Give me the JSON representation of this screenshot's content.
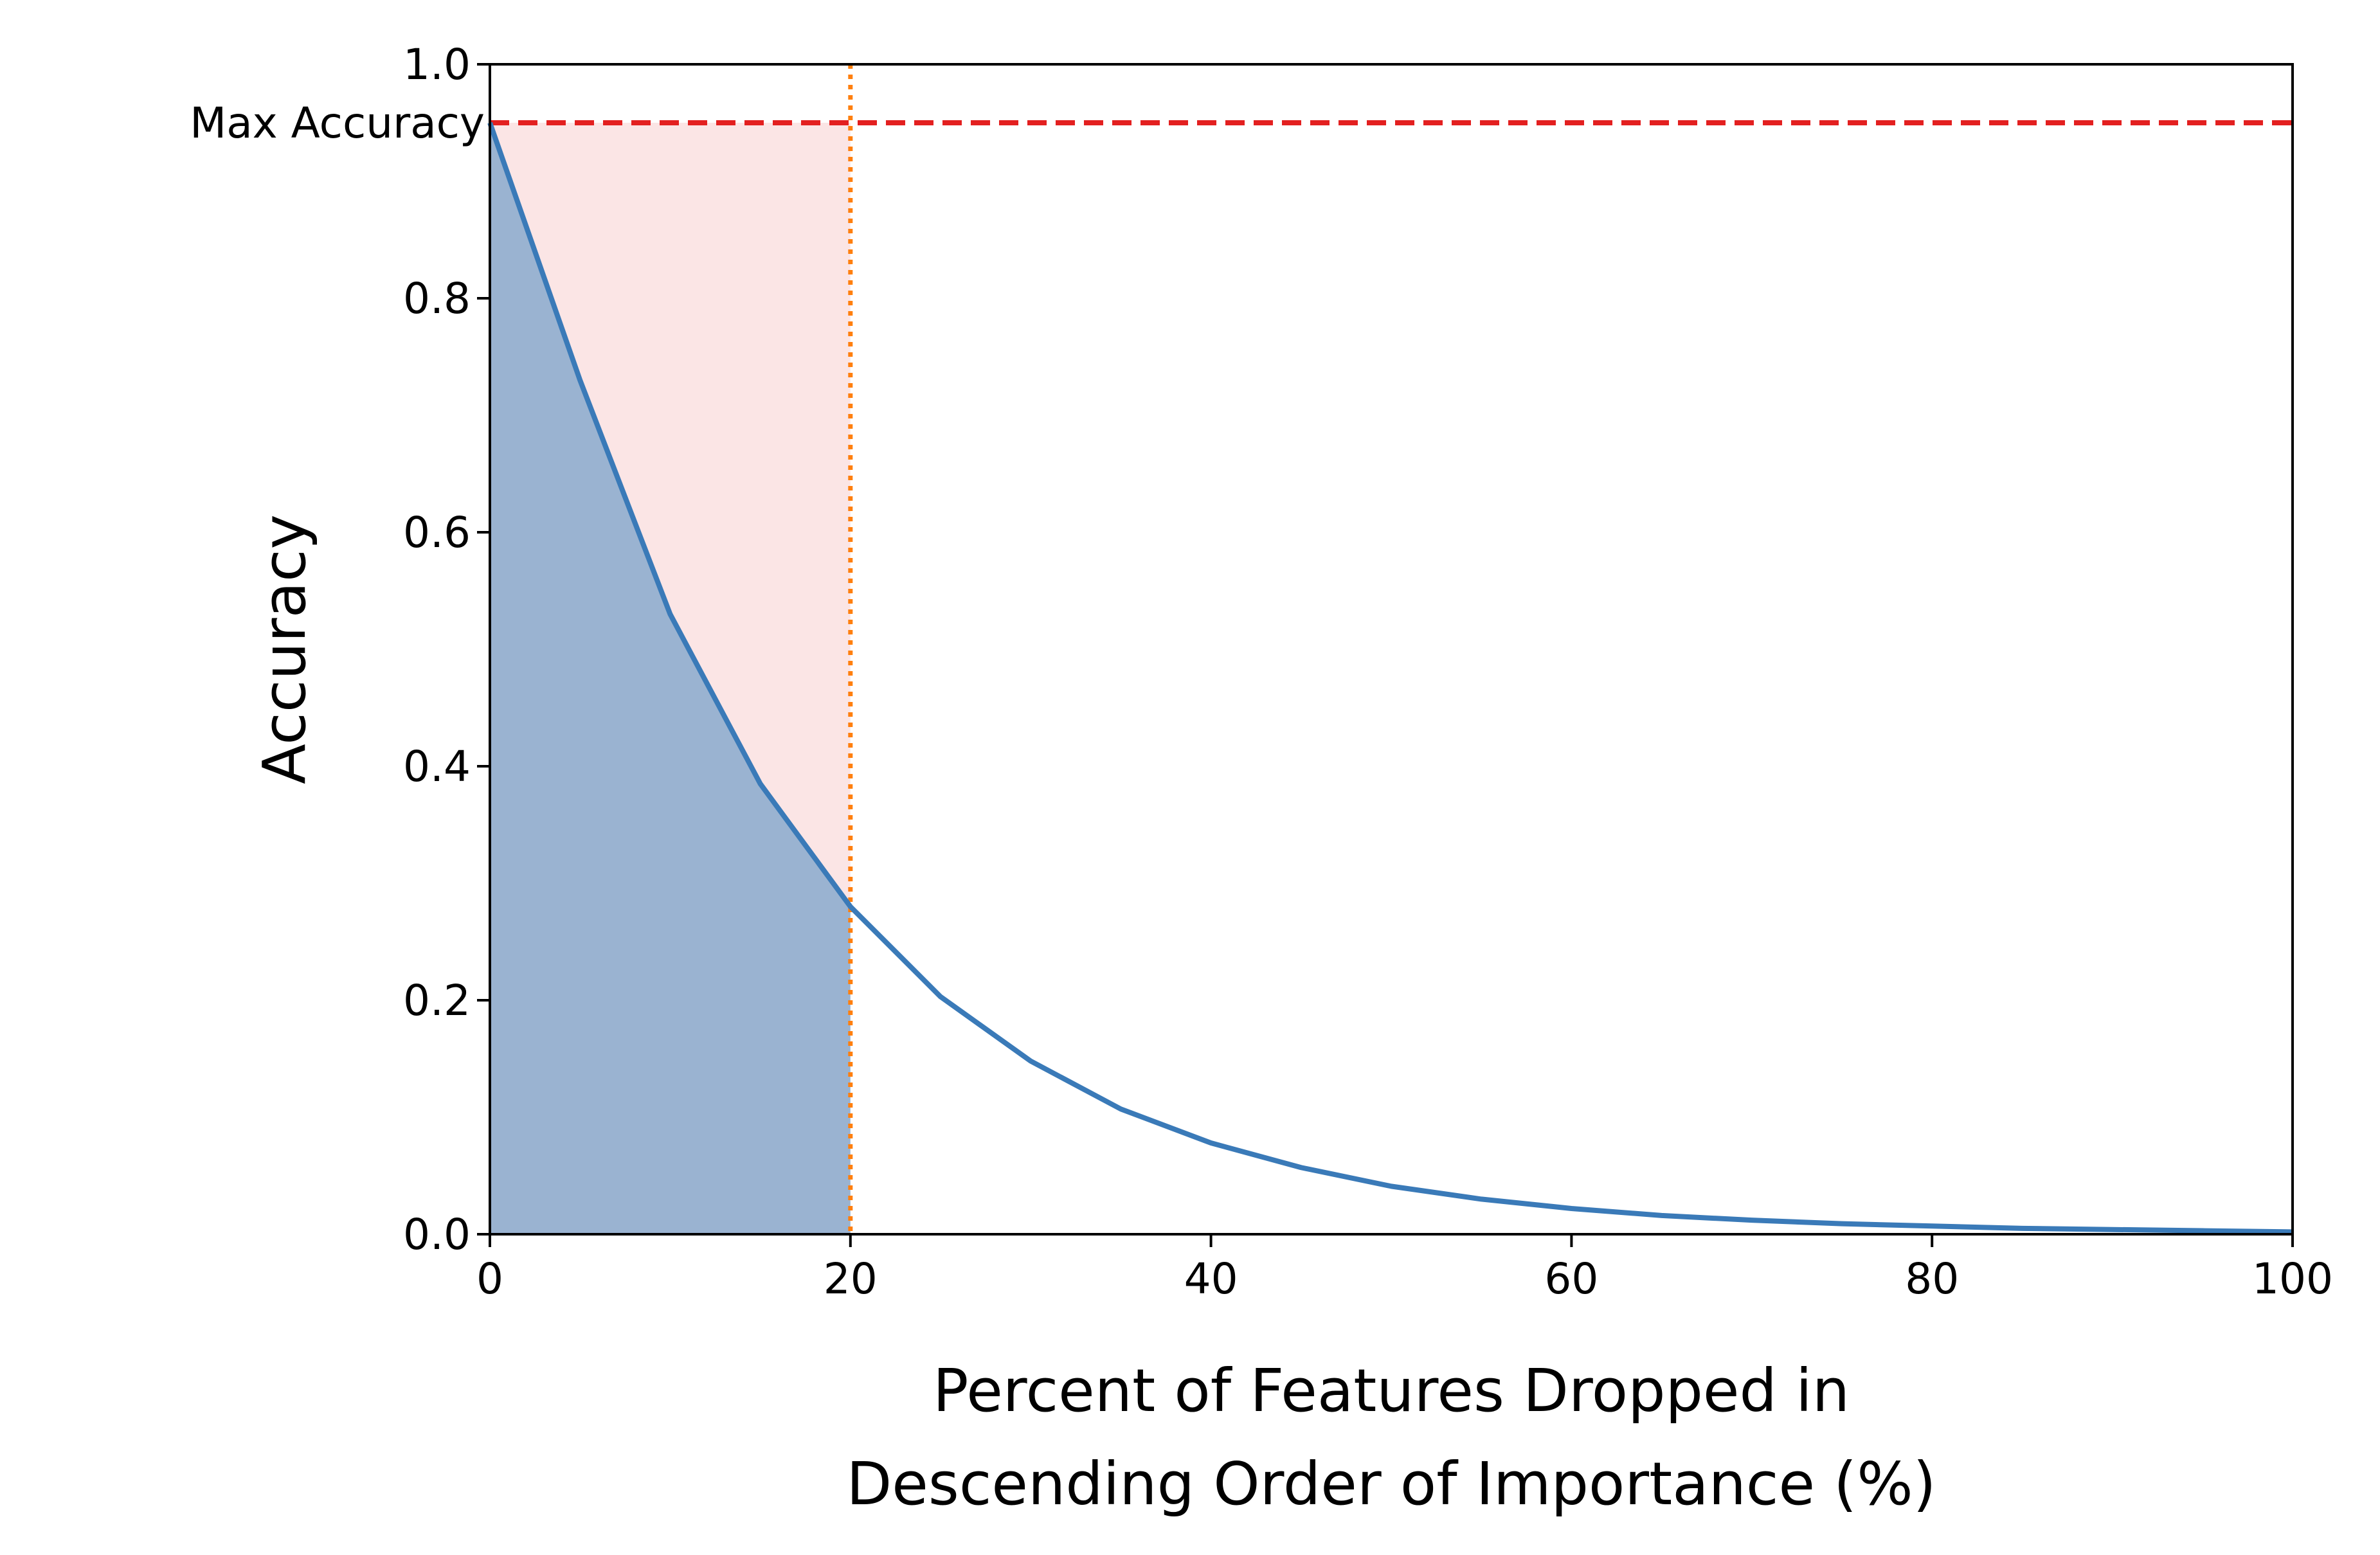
{
  "chart_data": {
    "type": "line",
    "title": "",
    "xlabel_lines": [
      "Percent of Features Dropped in",
      "Descending Order of Importance (%)"
    ],
    "ylabel": "Accuracy",
    "xlim": [
      0,
      100
    ],
    "ylim": [
      0,
      1.0
    ],
    "xticks": [
      0,
      20,
      40,
      60,
      80,
      100
    ],
    "xtick_labels": [
      "0",
      "20",
      "40",
      "60",
      "80",
      "100"
    ],
    "yticks": [
      0.0,
      0.2,
      0.4,
      0.6,
      0.8,
      1.0
    ],
    "ytick_labels": [
      "0.0",
      "0.2",
      "0.4",
      "0.6",
      "0.8",
      "1.0"
    ],
    "grid": false,
    "series": [
      {
        "x": [
          0,
          5,
          10,
          15,
          20,
          25,
          30,
          35,
          40,
          45,
          50,
          55,
          60,
          65,
          70,
          75,
          80,
          85,
          90,
          95,
          100
        ],
        "y": [
          0.95,
          0.73,
          0.53,
          0.385,
          0.28,
          0.203,
          0.148,
          0.107,
          0.078,
          0.057,
          0.041,
          0.03,
          0.022,
          0.016,
          0.012,
          0.009,
          0.007,
          0.005,
          0.004,
          0.003,
          0.002
        ],
        "color": "#3a7ab8"
      }
    ],
    "max_accuracy": {
      "label": "Max Accuracy",
      "value": 0.95,
      "color": "#e32020"
    },
    "cutoff": {
      "x": 20,
      "color": "#ff7f0e"
    },
    "shaded_area_under_curve": {
      "x_from": 0,
      "x_to": 20,
      "color": "#9ab3d1"
    },
    "shaded_area_above_curve": {
      "x_from": 0,
      "x_to": 20,
      "color": "#fbe5e5"
    }
  }
}
